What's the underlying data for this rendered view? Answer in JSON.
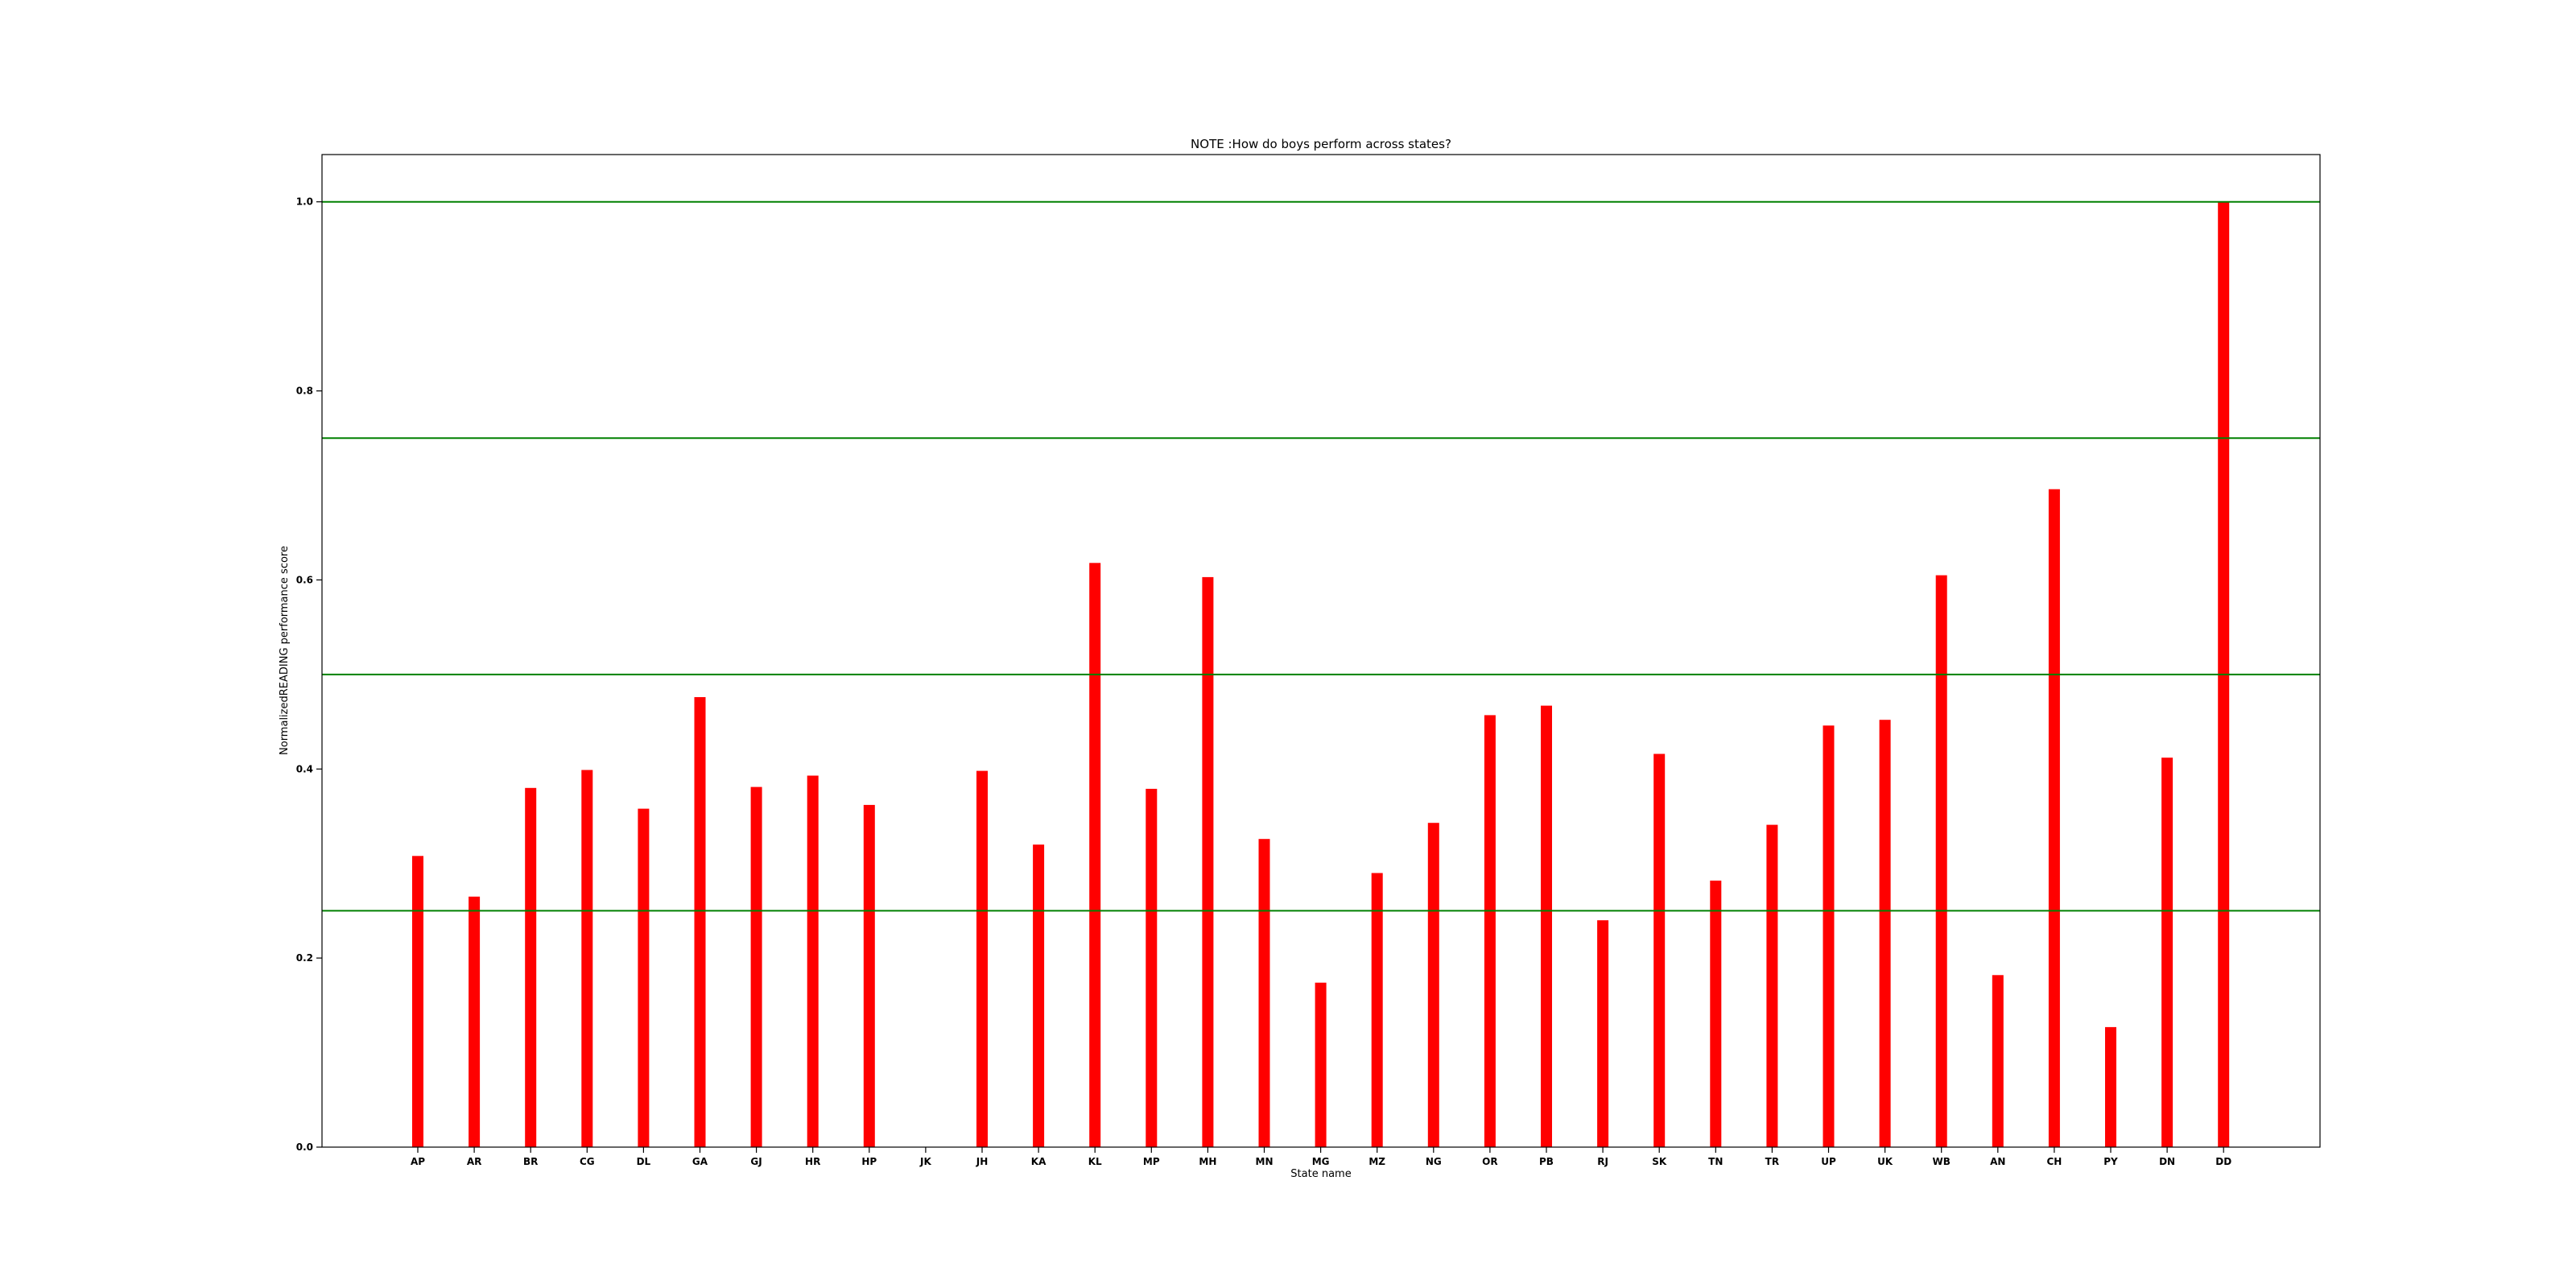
{
  "chart_data": {
    "type": "bar",
    "title": "NOTE :How do boys perform across states?",
    "xlabel": "State name",
    "ylabel": "NormalizedREADING performance score",
    "categories": [
      "AP",
      "AR",
      "BR",
      "CG",
      "DL",
      "GA",
      "GJ",
      "HR",
      "HP",
      "JK",
      "JH",
      "KA",
      "KL",
      "MP",
      "MH",
      "MN",
      "MG",
      "MZ",
      "NG",
      "OR",
      "PB",
      "RJ",
      "SK",
      "TN",
      "TR",
      "UP",
      "UK",
      "WB",
      "AN",
      "CH",
      "PY",
      "DN",
      "DD"
    ],
    "values": [
      0.308,
      0.265,
      0.38,
      0.399,
      0.358,
      0.476,
      0.381,
      0.393,
      0.362,
      0.0,
      0.398,
      0.32,
      0.618,
      0.379,
      0.603,
      0.326,
      0.174,
      0.29,
      0.343,
      0.457,
      0.467,
      0.24,
      0.416,
      0.282,
      0.341,
      0.446,
      0.452,
      0.605,
      0.182,
      0.696,
      0.127,
      0.412,
      1.0
    ],
    "yticks": [
      0.0,
      0.2,
      0.4,
      0.6,
      0.8,
      1.0
    ],
    "ytick_labels": [
      "0.0",
      "0.2",
      "0.4",
      "0.6",
      "0.8",
      "1.0"
    ],
    "ylim": [
      0,
      1.05
    ],
    "reference_lines": [
      0.25,
      0.5,
      0.75,
      1.0
    ],
    "bar_color": "#ff0000",
    "reference_line_color": "#008000",
    "grid": false
  }
}
